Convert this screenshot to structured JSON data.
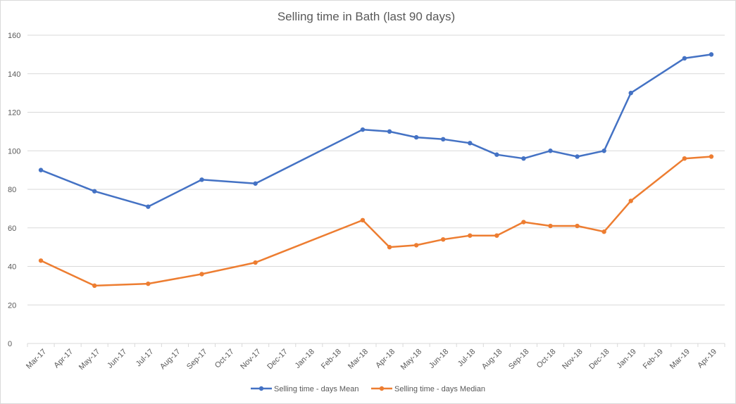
{
  "chart_data": {
    "type": "line",
    "title": "Selling time in Bath (last 90 days)",
    "xlabel": "",
    "ylabel": "",
    "ylim": [
      0,
      160
    ],
    "y_ticks": [
      "0",
      "20",
      "40",
      "60",
      "80",
      "100",
      "120",
      "140",
      "160"
    ],
    "categories": [
      "Mar-17",
      "Apr-17",
      "May-17",
      "Jun-17",
      "Jul-17",
      "Aug-17",
      "Sep-17",
      "Oct-17",
      "Nov-17",
      "Dec-17",
      "Jan-18",
      "Feb-18",
      "Mar-18",
      "Apr-18",
      "May-18",
      "Jun-18",
      "Jul-18",
      "Aug-18",
      "Sep-18",
      "Oct-18",
      "Nov-18",
      "Dec-18",
      "Jan-19",
      "Feb-19",
      "Mar-19",
      "Apr-19"
    ],
    "grid": true,
    "legend_position": "bottom",
    "series": [
      {
        "name": "Selling time - days Mean",
        "color": "#4472c4",
        "points": [
          {
            "x": "Mar-17",
            "y": 90
          },
          {
            "x": "May-17",
            "y": 79
          },
          {
            "x": "Jul-17",
            "y": 71
          },
          {
            "x": "Sep-17",
            "y": 85
          },
          {
            "x": "Nov-17",
            "y": 83
          },
          {
            "x": "Mar-18",
            "y": 111
          },
          {
            "x": "Apr-18",
            "y": 110
          },
          {
            "x": "May-18",
            "y": 107
          },
          {
            "x": "Jun-18",
            "y": 106
          },
          {
            "x": "Jul-18",
            "y": 104
          },
          {
            "x": "Aug-18",
            "y": 98
          },
          {
            "x": "Sep-18",
            "y": 96
          },
          {
            "x": "Oct-18",
            "y": 100
          },
          {
            "x": "Nov-18",
            "y": 97
          },
          {
            "x": "Dec-18",
            "y": 100
          },
          {
            "x": "Jan-19",
            "y": 130
          },
          {
            "x": "Mar-19",
            "y": 148
          },
          {
            "x": "Apr-19",
            "y": 150
          }
        ]
      },
      {
        "name": "Selling time - days Median",
        "color": "#ed7d31",
        "points": [
          {
            "x": "Mar-17",
            "y": 43
          },
          {
            "x": "May-17",
            "y": 30
          },
          {
            "x": "Jul-17",
            "y": 31
          },
          {
            "x": "Sep-17",
            "y": 36
          },
          {
            "x": "Nov-17",
            "y": 42
          },
          {
            "x": "Mar-18",
            "y": 64
          },
          {
            "x": "Apr-18",
            "y": 50
          },
          {
            "x": "May-18",
            "y": 51
          },
          {
            "x": "Jun-18",
            "y": 54
          },
          {
            "x": "Jul-18",
            "y": 56
          },
          {
            "x": "Aug-18",
            "y": 56
          },
          {
            "x": "Sep-18",
            "y": 63
          },
          {
            "x": "Oct-18",
            "y": 61
          },
          {
            "x": "Nov-18",
            "y": 61
          },
          {
            "x": "Dec-18",
            "y": 58
          },
          {
            "x": "Jan-19",
            "y": 74
          },
          {
            "x": "Mar-19",
            "y": 96
          },
          {
            "x": "Apr-19",
            "y": 97
          }
        ]
      }
    ]
  }
}
